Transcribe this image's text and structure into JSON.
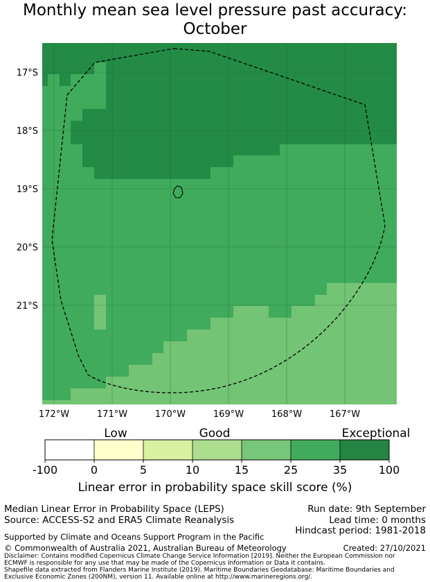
{
  "title": {
    "line1": "Monthly mean sea level pressure past accuracy:",
    "line2": "October"
  },
  "map": {
    "lat_labels": [
      "17°S",
      "18°S",
      "19°S",
      "20°S",
      "21°S"
    ],
    "lon_labels": [
      "172°W",
      "171°W",
      "170°W",
      "169°W",
      "168°W",
      "167°W"
    ],
    "colors": {
      "exceptional": "#238b45",
      "35_to_100": "#238b45",
      "25_to_35": "#41ab5d",
      "15_to_25": "#74c476",
      "grid": "#1e5a2e",
      "boundary": "#000000"
    }
  },
  "colorbar": {
    "categories": {
      "low": "Low",
      "good": "Good",
      "exceptional": "Exceptional"
    },
    "ticks": [
      "-100",
      "0",
      "5",
      "10",
      "15",
      "25",
      "35",
      "100"
    ],
    "bins": [
      {
        "color": "#ffffff"
      },
      {
        "color": "#ffffcc"
      },
      {
        "color": "#d9f0a3"
      },
      {
        "color": "#addd8e"
      },
      {
        "color": "#78c679"
      },
      {
        "color": "#41ab5d"
      },
      {
        "color": "#238443"
      }
    ],
    "label": "Linear error in probability space skill score (%)"
  },
  "footer": {
    "left1": "Median Linear Error in Probability Space (LEPS)",
    "left2": "Source: ACCESS-S2 and ERA5 Climate Reanalysis",
    "right1": "Run date: 9th September",
    "right2": "Lead time: 0 months",
    "right3": "Hindcast period: 1981-2018",
    "supported": "Supported by Climate and Oceans Support Program in the Pacific",
    "copyright": "© Commonwealth of Australia 2021, Australian Bureau of Meteorology",
    "created": "Created: 27/10/2021",
    "disclaimer1": "Disclaimer: Contains modified Copernicus Climate Change Service Information [2019]. Neither the European Commission nor",
    "disclaimer2": "ECMWF is responsible for any use that may be made of the Copernicus Information or Data it contains.",
    "disclaimer3": "Shapefile data extracted from Flanders Marine Institute (2019). Maritime Boundaries Geodatabase: Maritime Boundaries and",
    "disclaimer4": "Exclusive Economic Zones (200NM), version 11. Available online at http://www.marineregions.org/."
  }
}
